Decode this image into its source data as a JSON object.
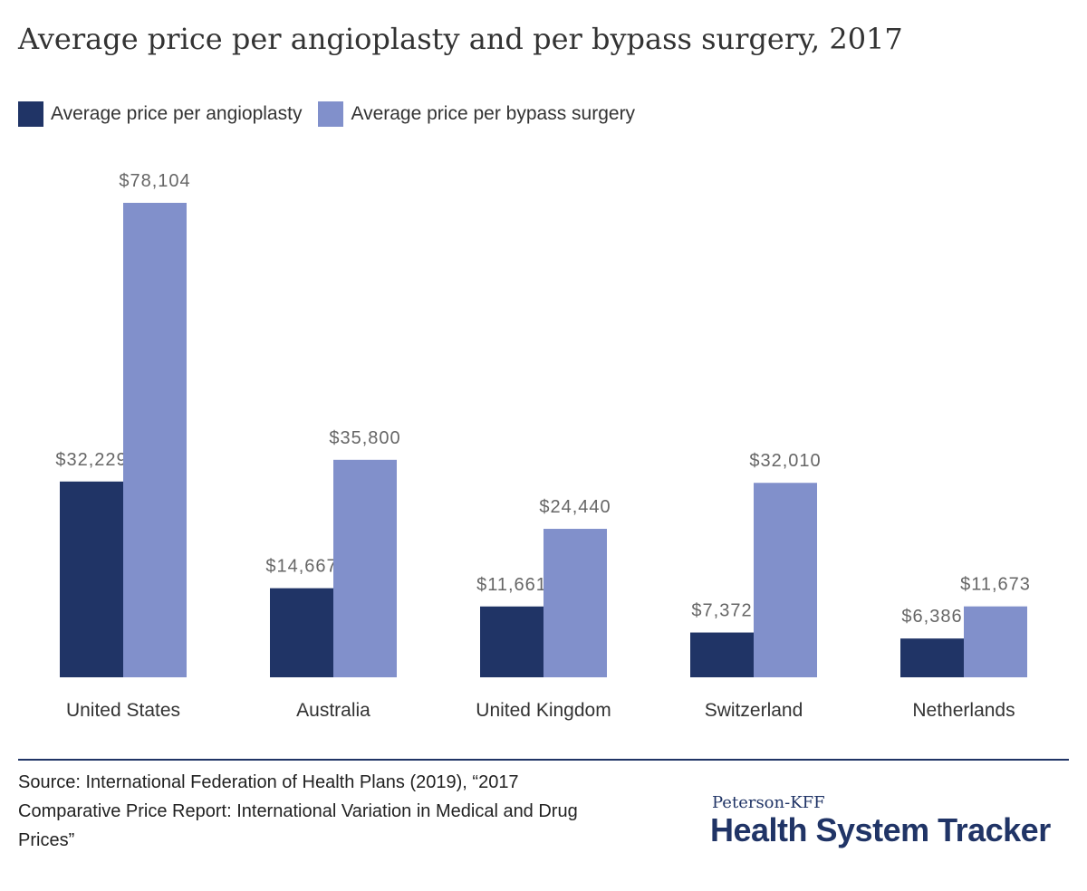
{
  "colors": {
    "angioplasty": "#203466",
    "bypass": "#8190CB",
    "brand": "#203466",
    "label": "#666666",
    "axis_text": "#333333"
  },
  "chart_data": {
    "type": "bar",
    "title": "Average price per angioplasty and per bypass surgery, 2017",
    "categories": [
      "United States",
      "Australia",
      "United Kingdom",
      "Switzerland",
      "Netherlands"
    ],
    "series": [
      {
        "name": "Average price per angioplasty",
        "values": [
          32229,
          14667,
          11661,
          7372,
          6386
        ],
        "labels": [
          "$32,229",
          "$14,667",
          "$11,661",
          "$7,372",
          "$6,386"
        ]
      },
      {
        "name": "Average price per bypass surgery",
        "values": [
          78104,
          35800,
          24440,
          32010,
          11673
        ],
        "labels": [
          "$78,104",
          "$35,800",
          "$24,440",
          "$32,010",
          "$11,673"
        ]
      }
    ],
    "ylim": [
      0,
      78104
    ],
    "grid": false,
    "legend_position": "top-left",
    "xlabel": "",
    "ylabel": ""
  },
  "source": "Source: International Federation of Health Plans (2019), “2017 Comparative Price Report: International Variation in Medical and Drug Prices”",
  "logo": {
    "top": "Peterson-KFF",
    "main": "Health System Tracker"
  }
}
